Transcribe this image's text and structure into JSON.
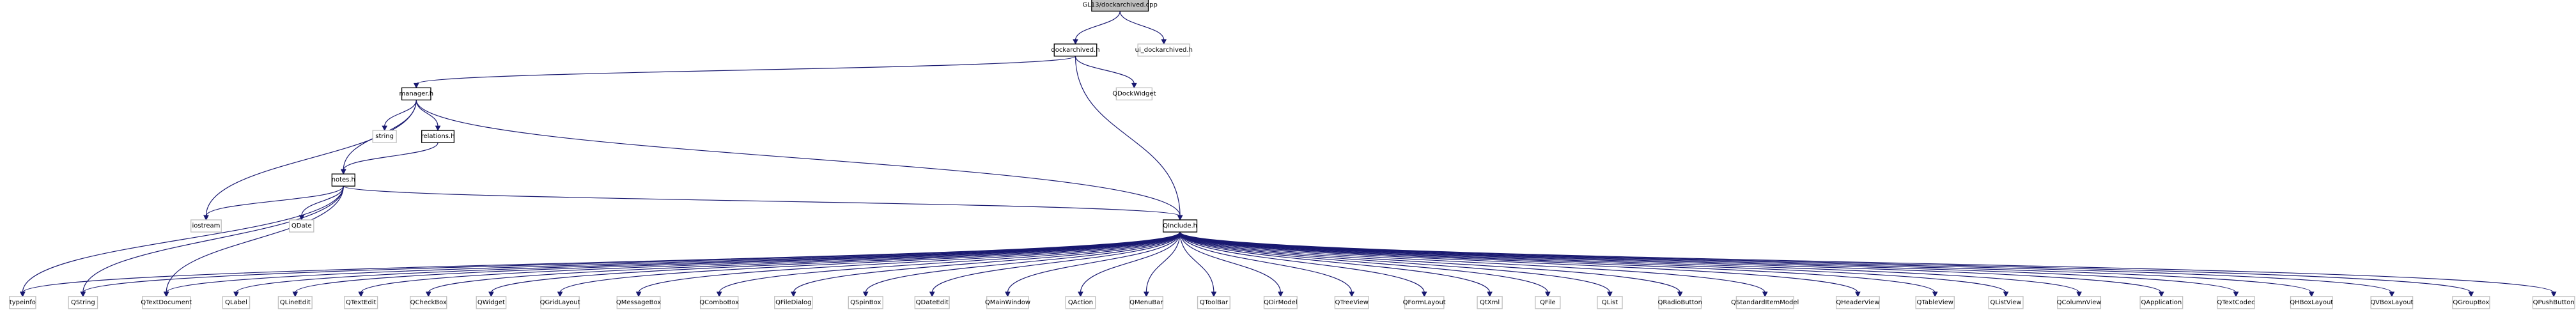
{
  "diagram": {
    "nodes": [
      {
        "id": "root",
        "label": "GL13/dockarchived.cpp",
        "kind": "header"
      },
      {
        "id": "dockh",
        "label": "dockarchived.h",
        "kind": "doc"
      },
      {
        "id": "uidock",
        "label": "ui_dockarchived.h",
        "kind": "ext"
      },
      {
        "id": "manager",
        "label": "manager.h",
        "kind": "doc"
      },
      {
        "id": "qdockwidget",
        "label": "QDockWidget",
        "kind": "ext"
      },
      {
        "id": "string",
        "label": "string",
        "kind": "ext"
      },
      {
        "id": "relations",
        "label": "relations.h",
        "kind": "doc"
      },
      {
        "id": "notes",
        "label": "notes.h",
        "kind": "doc"
      },
      {
        "id": "iostream",
        "label": "iostream",
        "kind": "ext"
      },
      {
        "id": "qdate",
        "label": "QDate",
        "kind": "ext"
      },
      {
        "id": "qinclude",
        "label": "QInclude.h",
        "kind": "doc"
      },
      {
        "id": "typeinfo",
        "label": "typeinfo",
        "kind": "ext"
      },
      {
        "id": "QString",
        "label": "QString",
        "kind": "ext"
      },
      {
        "id": "QTextDocument",
        "label": "QTextDocument",
        "kind": "ext"
      },
      {
        "id": "QLabel",
        "label": "QLabel",
        "kind": "ext"
      },
      {
        "id": "QLineEdit",
        "label": "QLineEdit",
        "kind": "ext"
      },
      {
        "id": "QTextEdit",
        "label": "QTextEdit",
        "kind": "ext"
      },
      {
        "id": "QCheckBox",
        "label": "QCheckBox",
        "kind": "ext"
      },
      {
        "id": "QWidget",
        "label": "QWidget",
        "kind": "ext"
      },
      {
        "id": "QGridLayout",
        "label": "QGridLayout",
        "kind": "ext"
      },
      {
        "id": "QMessageBox",
        "label": "QMessageBox",
        "kind": "ext"
      },
      {
        "id": "QComboBox",
        "label": "QComboBox",
        "kind": "ext"
      },
      {
        "id": "QFileDialog",
        "label": "QFileDialog",
        "kind": "ext"
      },
      {
        "id": "QSpinBox",
        "label": "QSpinBox",
        "kind": "ext"
      },
      {
        "id": "QDateEdit",
        "label": "QDateEdit",
        "kind": "ext"
      },
      {
        "id": "QMainWindow",
        "label": "QMainWindow",
        "kind": "ext"
      },
      {
        "id": "QAction",
        "label": "QAction",
        "kind": "ext"
      },
      {
        "id": "QMenuBar",
        "label": "QMenuBar",
        "kind": "ext"
      },
      {
        "id": "QToolBar",
        "label": "QToolBar",
        "kind": "ext"
      },
      {
        "id": "QDirModel",
        "label": "QDirModel",
        "kind": "ext"
      },
      {
        "id": "QTreeView",
        "label": "QTreeView",
        "kind": "ext"
      },
      {
        "id": "QFormLayout",
        "label": "QFormLayout",
        "kind": "ext"
      },
      {
        "id": "QtXml",
        "label": "QtXml",
        "kind": "ext"
      },
      {
        "id": "QFile",
        "label": "QFile",
        "kind": "ext"
      },
      {
        "id": "QList",
        "label": "QList",
        "kind": "ext"
      },
      {
        "id": "QRadioButton",
        "label": "QRadioButton",
        "kind": "ext"
      },
      {
        "id": "QStandardItemModel",
        "label": "QStandardItemModel",
        "kind": "ext"
      },
      {
        "id": "QHeaderView",
        "label": "QHeaderView",
        "kind": "ext"
      },
      {
        "id": "QTableView",
        "label": "QTableView",
        "kind": "ext"
      },
      {
        "id": "QListView",
        "label": "QListView",
        "kind": "ext"
      },
      {
        "id": "QColumnView",
        "label": "QColumnView",
        "kind": "ext"
      },
      {
        "id": "QApplication",
        "label": "QApplication",
        "kind": "ext"
      },
      {
        "id": "QTextCodec",
        "label": "QTextCodec",
        "kind": "ext"
      },
      {
        "id": "QHBoxLayout",
        "label": "QHBoxLayout",
        "kind": "ext"
      },
      {
        "id": "QVBoxLayout",
        "label": "QVBoxLayout",
        "kind": "ext"
      },
      {
        "id": "QGroupBox",
        "label": "QGroupBox",
        "kind": "ext"
      },
      {
        "id": "QPushButton",
        "label": "QPushButton",
        "kind": "ext"
      }
    ],
    "edges": [
      [
        "root",
        "dockh"
      ],
      [
        "root",
        "uidock"
      ],
      [
        "dockh",
        "manager"
      ],
      [
        "dockh",
        "qdockwidget"
      ],
      [
        "dockh",
        "qinclude"
      ],
      [
        "manager",
        "string"
      ],
      [
        "manager",
        "relations"
      ],
      [
        "manager",
        "notes"
      ],
      [
        "manager",
        "iostream"
      ],
      [
        "manager",
        "qinclude"
      ],
      [
        "relations",
        "notes"
      ],
      [
        "notes",
        "iostream"
      ],
      [
        "notes",
        "qdate"
      ],
      [
        "notes",
        "qinclude"
      ],
      [
        "notes",
        "typeinfo"
      ],
      [
        "notes",
        "QString"
      ],
      [
        "notes",
        "QTextDocument"
      ],
      [
        "qinclude",
        "typeinfo"
      ],
      [
        "qinclude",
        "QString"
      ],
      [
        "qinclude",
        "QTextDocument"
      ],
      [
        "qinclude",
        "QLabel"
      ],
      [
        "qinclude",
        "QLineEdit"
      ],
      [
        "qinclude",
        "QTextEdit"
      ],
      [
        "qinclude",
        "QCheckBox"
      ],
      [
        "qinclude",
        "QWidget"
      ],
      [
        "qinclude",
        "QGridLayout"
      ],
      [
        "qinclude",
        "QMessageBox"
      ],
      [
        "qinclude",
        "QComboBox"
      ],
      [
        "qinclude",
        "QFileDialog"
      ],
      [
        "qinclude",
        "QSpinBox"
      ],
      [
        "qinclude",
        "QDateEdit"
      ],
      [
        "qinclude",
        "QMainWindow"
      ],
      [
        "qinclude",
        "QAction"
      ],
      [
        "qinclude",
        "QMenuBar"
      ],
      [
        "qinclude",
        "QToolBar"
      ],
      [
        "qinclude",
        "QDirModel"
      ],
      [
        "qinclude",
        "QTreeView"
      ],
      [
        "qinclude",
        "QFormLayout"
      ],
      [
        "qinclude",
        "QtXml"
      ],
      [
        "qinclude",
        "QFile"
      ],
      [
        "qinclude",
        "QList"
      ],
      [
        "qinclude",
        "QRadioButton"
      ],
      [
        "qinclude",
        "QStandardItemModel"
      ],
      [
        "qinclude",
        "QHeaderView"
      ],
      [
        "qinclude",
        "QTableView"
      ],
      [
        "qinclude",
        "QListView"
      ],
      [
        "qinclude",
        "QColumnView"
      ],
      [
        "qinclude",
        "QApplication"
      ],
      [
        "qinclude",
        "QTextCodec"
      ],
      [
        "qinclude",
        "QHBoxLayout"
      ],
      [
        "qinclude",
        "QVBoxLayout"
      ],
      [
        "qinclude",
        "QGroupBox"
      ],
      [
        "qinclude",
        "QPushButton"
      ]
    ]
  },
  "colors": {
    "edge": "#191970",
    "header_fill": "#bfbfbf",
    "doc_border": "#000000",
    "ext_border": "#bfbfbf"
  }
}
